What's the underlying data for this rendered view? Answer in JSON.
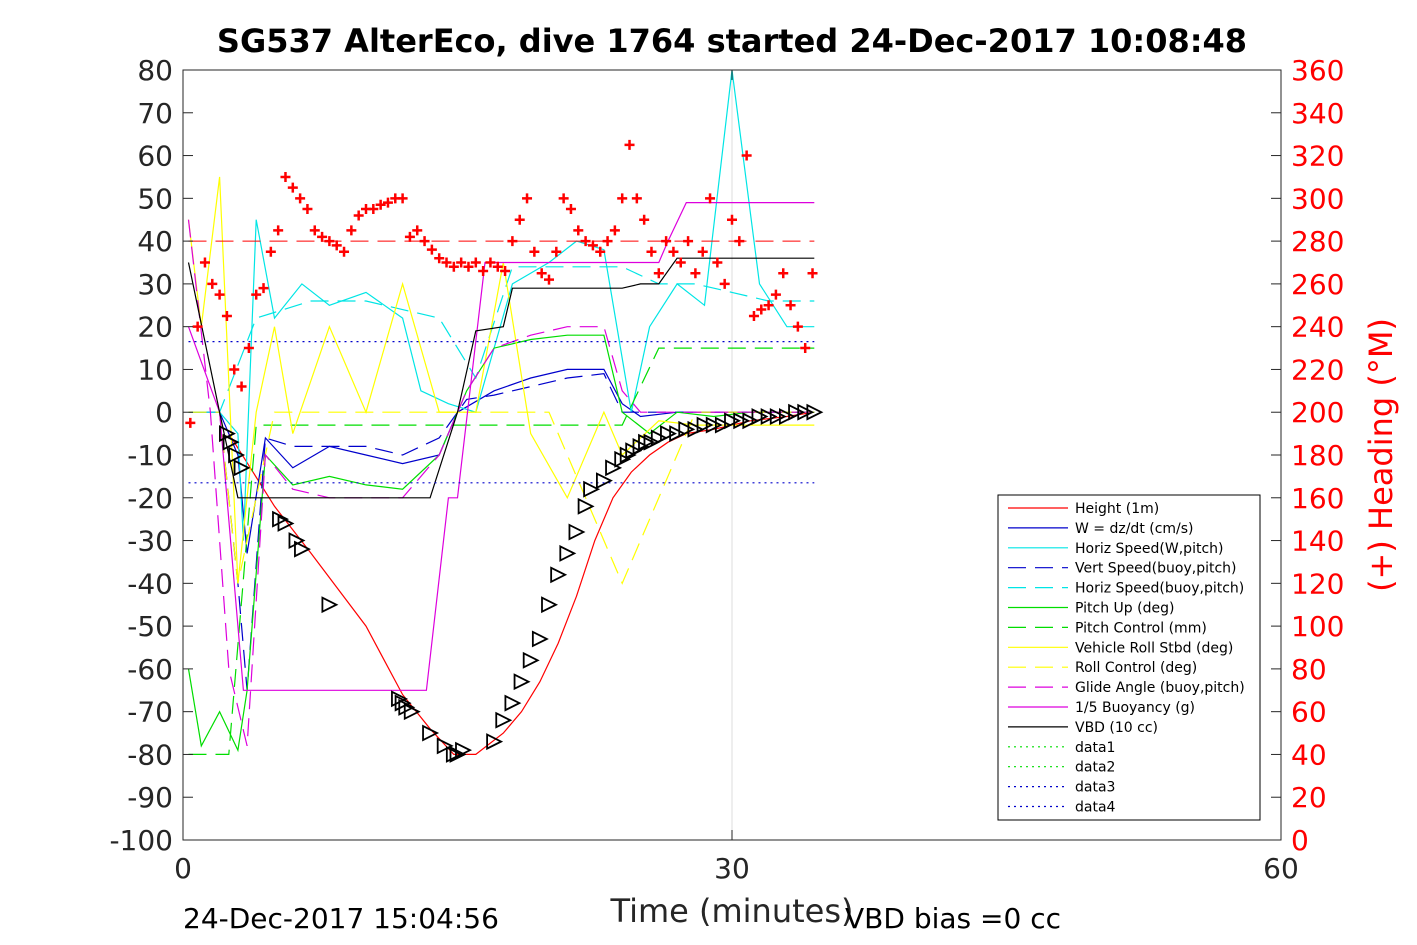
{
  "chart_data": {
    "type": "line",
    "title": "SG537 AlterEco, dive 1764 started 24-Dec-2017 10:08:48",
    "xlabel": "Time (minutes)",
    "ylabel": "",
    "ylabel_right": "(+) Heading (°M)",
    "xlim": [
      0,
      60
    ],
    "ylim": [
      -100,
      80
    ],
    "ylim_right": [
      0,
      360
    ],
    "x_ticks": [
      "0",
      "30",
      "60"
    ],
    "y_ticks": [
      "80",
      "70",
      "60",
      "50",
      "40",
      "30",
      "20",
      "10",
      "0",
      "-10",
      "-20",
      "-30",
      "-40",
      "-50",
      "-60",
      "-70",
      "-80",
      "-90",
      "-100"
    ],
    "y_ticks_right": [
      "360",
      "340",
      "320",
      "300",
      "280",
      "260",
      "240",
      "220",
      "200",
      "180",
      "160",
      "140",
      "120",
      "100",
      "80",
      "60",
      "40",
      "20",
      "0"
    ],
    "grid": "x at 30 only",
    "legend_position": "bottom-right",
    "footer_left": "24-Dec-2017 15:04:56",
    "footer_right": "VBD bias =0 cc",
    "series": [
      {
        "name": "Height (1m)",
        "color": "#ff0000",
        "style": "solid",
        "x": [
          2.5,
          5.0,
          7.0,
          10.0,
          12.0,
          13.5,
          14.8,
          16.0,
          17.5,
          18.5,
          19.5,
          20.5,
          21.5,
          22.5,
          23.5,
          24.5,
          25.5,
          26.5,
          27.5,
          29.0,
          31.0,
          33.0,
          34.5
        ],
        "y": [
          -5,
          -22,
          -33,
          -50,
          -66,
          -74,
          -80,
          -80,
          -75,
          -70,
          -63,
          -54,
          -43,
          -30,
          -20,
          -14,
          -10,
          -7,
          -5,
          -4,
          -2,
          -1,
          0
        ]
      },
      {
        "name": "W = dz/dt (cm/s)",
        "color": "#0000cc",
        "style": "solid",
        "x": [
          0.3,
          2.0,
          3.0,
          3.5,
          4.5,
          6.0,
          8.0,
          10.0,
          12.0,
          14.0,
          15.0,
          17.0,
          19.0,
          21.0,
          23.0,
          24.0,
          25.0,
          27.0,
          29.0,
          31.0,
          33.0,
          34.5
        ],
        "y": [
          0,
          0,
          -10,
          -33,
          -6,
          -13,
          -8,
          -10,
          -12,
          -10,
          0,
          5,
          8,
          10,
          10,
          2,
          -1,
          0,
          0,
          0,
          0,
          0
        ]
      },
      {
        "name": "Horiz Speed(W,pitch)",
        "color": "#00e5e5",
        "style": "solid",
        "x": [
          0.3,
          2.0,
          3.0,
          3.3,
          4.0,
          5.0,
          6.5,
          8.0,
          10.0,
          12.0,
          13.0,
          14.5,
          16.0,
          18.0,
          20.0,
          21.5,
          23.0,
          24.5,
          25.5,
          27.0,
          28.5,
          30.0,
          31.5,
          33.0,
          34.5
        ],
        "y": [
          0,
          0,
          -5,
          -30,
          45,
          22,
          30,
          25,
          28,
          22,
          5,
          2,
          0,
          30,
          35,
          40,
          38,
          0,
          20,
          30,
          25,
          80,
          30,
          20,
          20
        ]
      },
      {
        "name": "Vert Speed(buoy,pitch)",
        "color": "#0000cc",
        "style": "dashed",
        "x": [
          0.3,
          2.0,
          3.0,
          3.5,
          4.5,
          6.0,
          8.0,
          10.0,
          12.0,
          14.0,
          15.5,
          17.0,
          19.0,
          21.0,
          23.0,
          24.0,
          26.0,
          28.0,
          30.0,
          32.0,
          34.5
        ],
        "y": [
          0,
          0,
          -40,
          -65,
          -6,
          -8,
          -8,
          -8,
          -10,
          -6,
          3,
          4,
          6,
          8,
          9,
          0,
          0,
          0,
          0,
          0,
          0
        ]
      },
      {
        "name": "Horiz Speed(buoy,pitch)",
        "color": "#00e5e5",
        "style": "dashed",
        "x": [
          0.3,
          2.0,
          4.0,
          7.0,
          10.0,
          14.0,
          16.0,
          18.0,
          22.0,
          24.0,
          26.0,
          28.0,
          30.0,
          32.0,
          34.5
        ],
        "y": [
          0,
          0,
          22,
          26,
          26,
          22,
          8,
          34,
          34,
          34,
          30,
          30,
          28,
          26,
          26
        ]
      },
      {
        "name": "Pitch Up (deg)",
        "color": "#00dd00",
        "style": "solid",
        "x": [
          0.3,
          1.0,
          2.0,
          3.0,
          3.5,
          4.5,
          6.0,
          8.0,
          10.0,
          12.0,
          14.0,
          15.5,
          17.0,
          19.0,
          21.0,
          23.0,
          24.0,
          25.5,
          27.0,
          29.0,
          31.0,
          33.0,
          34.5
        ],
        "y": [
          -60,
          -78,
          -70,
          -79,
          -65,
          -10,
          -17,
          -15,
          -17,
          -18,
          -10,
          5,
          15,
          17,
          18,
          18,
          0,
          -5,
          0,
          -1,
          0,
          0,
          0
        ]
      },
      {
        "name": "Pitch Control (mm)",
        "color": "#00dd00",
        "style": "dashed",
        "x": [
          0.3,
          2.5,
          4.0,
          14.0,
          16.0,
          18.0,
          20.0,
          24.0,
          26.0,
          30.0,
          34.5
        ],
        "y": [
          -80,
          -80,
          -3,
          -3,
          -3,
          -3,
          -3,
          -3,
          15,
          15,
          15
        ]
      },
      {
        "name": "Vehicle Roll Stbd (deg)",
        "color": "#ffff00",
        "style": "solid",
        "x": [
          0.3,
          1.0,
          2.0,
          3.0,
          4.0,
          5.0,
          6.0,
          8.0,
          10.0,
          12.0,
          14.0,
          16.0,
          17.5,
          19.0,
          21.0,
          23.0,
          24.0,
          26.0,
          28.0,
          30.0,
          32.0,
          34.5
        ],
        "y": [
          45,
          20,
          55,
          -40,
          0,
          20,
          -5,
          20,
          0,
          30,
          0,
          0,
          35,
          -5,
          -20,
          0,
          -10,
          -2,
          -3,
          -3,
          -3,
          -3
        ]
      },
      {
        "name": "Roll Control (deg)",
        "color": "#ffff00",
        "style": "dashed",
        "x": [
          0.3,
          2.0,
          3.0,
          5.0,
          8.0,
          12.0,
          16.0,
          20.0,
          24.0,
          28.0,
          34.5
        ],
        "y": [
          0,
          0,
          -40,
          0,
          0,
          0,
          0,
          0,
          -40,
          0,
          0
        ]
      },
      {
        "name": "Glide Angle (buoy,pitch)",
        "color": "#dd00dd",
        "style": "dashed",
        "x": [
          0.3,
          1.5,
          2.5,
          3.5,
          4.5,
          6.0,
          8.0,
          10.0,
          12.0,
          14.0,
          15.5,
          17.0,
          19.0,
          21.0,
          23.0,
          24.0,
          25.0,
          27.0,
          30.0,
          34.5
        ],
        "y": [
          45,
          0,
          -60,
          -78,
          -10,
          -18,
          -20,
          -20,
          -20,
          -10,
          5,
          15,
          18,
          20,
          20,
          5,
          0,
          0,
          0,
          0
        ]
      },
      {
        "name": "1/5 Buoyancy (g)",
        "color": "#dd00dd",
        "style": "solid",
        "x": [
          0.3,
          2.0,
          3.3,
          6.0,
          10.0,
          13.3,
          14.5,
          15.0,
          16.5,
          17.5,
          24.0,
          26.0,
          26.5,
          27.5,
          34.5
        ],
        "y": [
          20,
          0,
          -65,
          -65,
          -65,
          -65,
          -20,
          -20,
          35,
          35,
          35,
          35,
          40,
          49,
          49
        ]
      },
      {
        "name": "VBD (10 cc)",
        "color": "#000000",
        "style": "solid",
        "x": [
          0.3,
          2.0,
          3.0,
          6.0,
          10.0,
          13.5,
          15.0,
          16.0,
          17.5,
          18.0,
          24.0,
          25.0,
          26.0,
          27.0,
          34.5
        ],
        "y": [
          35,
          0,
          -20,
          -20,
          -20,
          -20,
          0,
          19,
          20,
          29,
          29,
          30,
          30,
          36,
          36
        ]
      },
      {
        "name": "data1",
        "color": "#00dd00",
        "style": "dotted",
        "x": [],
        "y": []
      },
      {
        "name": "data2",
        "color": "#00dd00",
        "style": "dotted",
        "x": [],
        "y": []
      },
      {
        "name": "data3",
        "color": "#0000cc",
        "style": "dotted",
        "x": [
          0.3,
          34.5
        ],
        "y": [
          16.5,
          16.5
        ]
      },
      {
        "name": "data4",
        "color": "#0000cc",
        "style": "dotted",
        "x": [
          0.3,
          34.5
        ],
        "y": [
          -16.5,
          -16.5
        ]
      }
    ],
    "reference_lines": [
      {
        "color": "#ff0000",
        "style": "dashed",
        "axis": "right",
        "y": 280,
        "x_range": [
          0.3,
          34.5
        ]
      }
    ],
    "heading_points": {
      "axis": "right",
      "color": "#ff0000",
      "marker": "+",
      "x": [
        0.4,
        0.8,
        1.2,
        1.6,
        2.0,
        2.4,
        2.8,
        3.2,
        3.6,
        4.0,
        4.4,
        4.8,
        5.2,
        5.6,
        6.0,
        6.4,
        6.8,
        7.2,
        7.6,
        8.0,
        8.4,
        8.8,
        9.2,
        9.6,
        10.0,
        10.4,
        10.8,
        11.2,
        11.6,
        12.0,
        12.4,
        12.8,
        13.2,
        13.6,
        14.0,
        14.4,
        14.8,
        15.2,
        15.6,
        16.0,
        16.4,
        16.8,
        17.2,
        17.6,
        18.0,
        18.4,
        18.8,
        19.2,
        19.6,
        20.0,
        20.4,
        20.8,
        21.2,
        21.6,
        22.0,
        22.4,
        22.8,
        23.2,
        23.6,
        24.0,
        24.4,
        24.8,
        25.2,
        25.6,
        26.0,
        26.4,
        26.8,
        27.2,
        27.6,
        28.0,
        28.4,
        28.8,
        29.2,
        29.6,
        30.0,
        30.4,
        30.8,
        31.2,
        31.6,
        32.0,
        32.4,
        32.8,
        33.2,
        33.6,
        34.0,
        34.4
      ],
      "y": [
        195,
        240,
        270,
        260,
        255,
        245,
        220,
        212,
        230,
        255,
        258,
        275,
        285,
        310,
        305,
        300,
        295,
        285,
        282,
        280,
        278,
        275,
        285,
        292,
        295,
        295,
        297,
        298,
        300,
        300,
        282,
        285,
        280,
        276,
        272,
        270,
        268,
        270,
        268,
        270,
        266,
        270,
        268,
        266,
        280,
        290,
        300,
        275,
        265,
        262,
        275,
        300,
        295,
        285,
        280,
        278,
        275,
        280,
        285,
        300,
        325,
        300,
        290,
        275,
        265,
        280,
        275,
        270,
        280,
        265,
        275,
        300,
        270,
        260,
        290,
        280,
        320,
        245,
        248,
        250,
        255,
        265,
        250,
        240,
        230,
        265
      ]
    },
    "vertex_markers": {
      "color": "#000000",
      "marker": "triangle",
      "x": [
        2.4,
        2.6,
        2.9,
        3.2,
        5.3,
        5.6,
        6.2,
        6.5,
        8.0,
        11.8,
        12.0,
        12.2,
        12.5,
        13.5,
        14.3,
        14.8,
        15.0,
        15.3,
        17.0,
        17.5,
        18.0,
        18.5,
        19.0,
        19.5,
        20.0,
        20.5,
        21.0,
        21.5,
        22.0,
        22.3,
        23.0,
        23.5,
        24.0,
        24.3,
        24.6,
        25.0,
        25.3,
        25.6,
        26.0,
        26.5,
        27.0,
        27.5,
        28.0,
        28.5,
        29.0,
        29.5,
        30.0,
        30.5,
        31.0,
        31.5,
        32.0,
        32.5,
        33.0,
        33.5,
        34.0,
        34.5
      ],
      "y": [
        -5,
        -7,
        -10,
        -13,
        -25,
        -26,
        -30,
        -32,
        -45,
        -67,
        -68,
        -69,
        -70,
        -75,
        -78,
        -80,
        -80,
        -79,
        -77,
        -72,
        -68,
        -63,
        -58,
        -53,
        -45,
        -38,
        -33,
        -28,
        -22,
        -18,
        -16,
        -13,
        -11,
        -10,
        -9,
        -8,
        -7,
        -7,
        -6,
        -5,
        -5,
        -4,
        -4,
        -3,
        -3,
        -3,
        -2,
        -2,
        -2,
        -1,
        -1,
        -1,
        -1,
        0,
        0,
        0
      ]
    }
  }
}
